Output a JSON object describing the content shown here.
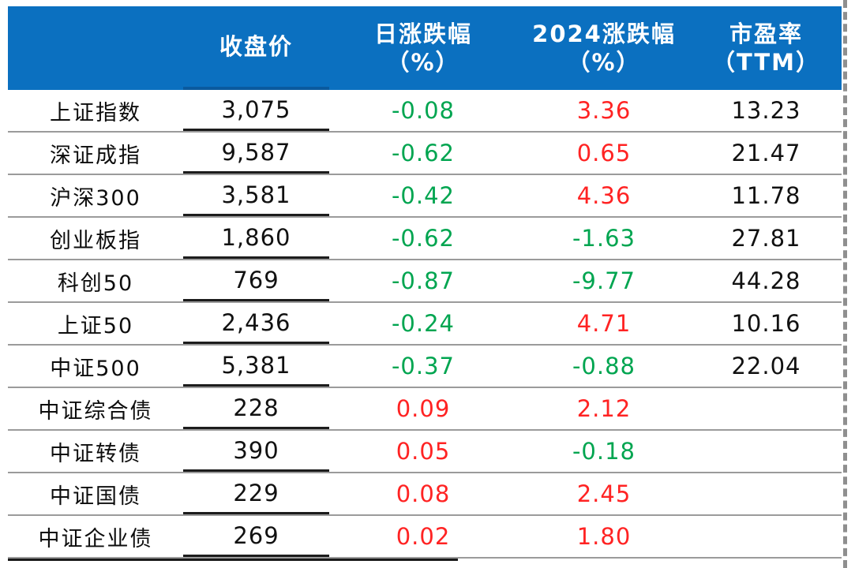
{
  "colors": {
    "header_bg": "#0B70C0",
    "up": "#FF2323",
    "down": "#00A550",
    "neutral": "#111111",
    "grid": "#9B9B9B"
  },
  "table": {
    "columns": [
      {
        "label": "",
        "label2": ""
      },
      {
        "label": "收盘价",
        "label2": ""
      },
      {
        "label": "日涨跌幅",
        "label2": "（%）"
      },
      {
        "label": "2024涨跌幅",
        "label2": "（%）"
      },
      {
        "label": "市盈率",
        "label2": "（TTM）"
      }
    ],
    "rows": [
      {
        "name": "上证指数",
        "close": "3,075",
        "daily": "-0.08",
        "ytd": "3.36",
        "pe": "13.23"
      },
      {
        "name": "深证成指",
        "close": "9,587",
        "daily": "-0.62",
        "ytd": "0.65",
        "pe": "21.47"
      },
      {
        "name": "沪深300",
        "close": "3,581",
        "daily": "-0.42",
        "ytd": "4.36",
        "pe": "11.78"
      },
      {
        "name": "创业板指",
        "close": "1,860",
        "daily": "-0.62",
        "ytd": "-1.63",
        "pe": "27.81"
      },
      {
        "name": "科创50",
        "close": "769",
        "daily": "-0.87",
        "ytd": "-9.77",
        "pe": "44.28"
      },
      {
        "name": "上证50",
        "close": "2,436",
        "daily": "-0.24",
        "ytd": "4.71",
        "pe": "10.16"
      },
      {
        "name": "中证500",
        "close": "5,381",
        "daily": "-0.37",
        "ytd": "-0.88",
        "pe": "22.04"
      },
      {
        "name": "中证综合债",
        "close": "228",
        "daily": "0.09",
        "ytd": "2.12",
        "pe": ""
      },
      {
        "name": "中证转债",
        "close": "390",
        "daily": "0.05",
        "ytd": "-0.18",
        "pe": ""
      },
      {
        "name": "中证国债",
        "close": "229",
        "daily": "0.08",
        "ytd": "2.45",
        "pe": ""
      },
      {
        "name": "中证企业债",
        "close": "269",
        "daily": "0.02",
        "ytd": "1.80",
        "pe": ""
      }
    ]
  },
  "chart_data": {
    "type": "table",
    "columns": [
      "",
      "收盘价",
      "日涨跌幅（%）",
      "2024涨跌幅（%）",
      "市盈率（TTM）"
    ],
    "rows": [
      [
        "上证指数",
        "3,075",
        "-0.08",
        "3.36",
        "13.23"
      ],
      [
        "深证成指",
        "9,587",
        "-0.62",
        "0.65",
        "21.47"
      ],
      [
        "沪深300",
        "3,581",
        "-0.42",
        "4.36",
        "11.78"
      ],
      [
        "创业板指",
        "1,860",
        "-0.62",
        "-1.63",
        "27.81"
      ],
      [
        "科创50",
        "769",
        "-0.87",
        "-9.77",
        "44.28"
      ],
      [
        "上证50",
        "2,436",
        "-0.24",
        "4.71",
        "10.16"
      ],
      [
        "中证500",
        "5,381",
        "-0.37",
        "-0.88",
        "22.04"
      ],
      [
        "中证综合债",
        "228",
        "0.09",
        "2.12",
        ""
      ],
      [
        "中证转债",
        "390",
        "0.05",
        "-0.18",
        ""
      ],
      [
        "中证国债",
        "229",
        "0.08",
        "2.45",
        ""
      ],
      [
        "中证企业债",
        "269",
        "0.02",
        "1.80",
        ""
      ]
    ],
    "legend": "red text = positive change, green text = negative change; header row has blue fill with white bold text; closing-price cells underlined black; dashed gray page-break line at right edge"
  }
}
